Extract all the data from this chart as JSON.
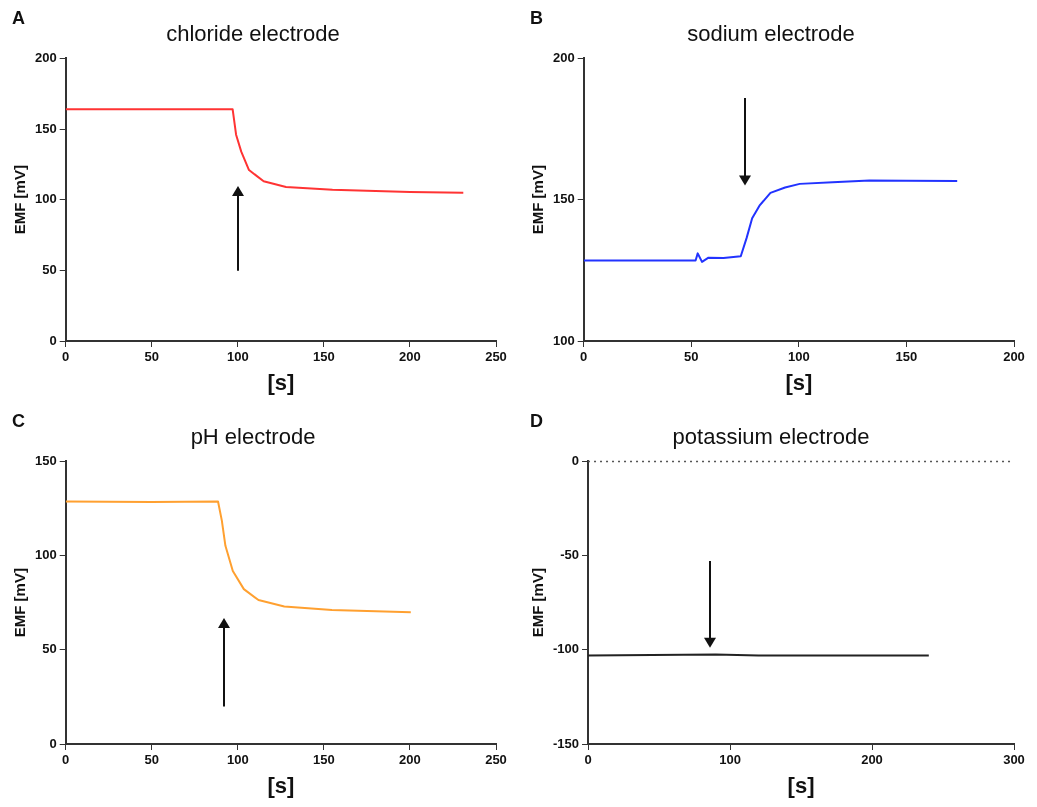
{
  "chart_data": [
    {
      "type": "line",
      "title": "chloride electrode",
      "xlabel": "[s]",
      "ylabel": "EMF [mV]",
      "annotations": [
        "A"
      ],
      "grid": false,
      "legend": false,
      "marker": "none",
      "line_style": "solid",
      "xlim": [
        0,
        250
      ],
      "xticks": [
        0,
        50,
        100,
        150,
        200,
        250
      ],
      "ylim": [
        0,
        200
      ],
      "yticks": [
        0,
        50,
        100,
        150,
        200
      ],
      "series": [
        {
          "color": "#ff3333",
          "x": [
            0,
            50,
            97,
            99,
            102,
            106.5,
            115,
            128,
            155,
            200,
            231
          ],
          "values": [
            164,
            164,
            164,
            146,
            134,
            121,
            113,
            109,
            107,
            105.5,
            105
          ]
        }
      ]
    },
    {
      "type": "line",
      "title": "sodium electrode",
      "xlabel": "[s]",
      "ylabel": "EMF [mV]",
      "annotations": [
        "B"
      ],
      "grid": false,
      "legend": false,
      "marker": "none",
      "line_style": "solid",
      "xlim": [
        0,
        200
      ],
      "xticks": [
        0,
        50,
        100,
        150,
        200
      ],
      "ylim": [
        100,
        200
      ],
      "yticks": [
        100,
        150,
        200
      ],
      "series": [
        {
          "color": "#2233ff",
          "x": [
            0,
            52,
            53,
            55,
            58,
            65,
            73,
            75.7,
            78.3,
            81.7,
            86.8,
            93.6,
            100.4,
            115.7,
            132.8,
            150,
            173.6
          ],
          "values": [
            128.5,
            128.5,
            131,
            128,
            129.5,
            129.4,
            130,
            136.4,
            143.4,
            147.9,
            152.4,
            154.3,
            155.6,
            156.2,
            156.8,
            156.7,
            156.6
          ]
        }
      ]
    },
    {
      "type": "line",
      "title": "pH electrode",
      "xlabel": "[s]",
      "ylabel": "EMF [mV]",
      "annotations": [
        "C"
      ],
      "grid": false,
      "legend": false,
      "marker": "none",
      "line_style": "solid",
      "xlim": [
        0,
        250
      ],
      "xticks": [
        0,
        50,
        100,
        150,
        200,
        250
      ],
      "ylim": [
        0,
        150
      ],
      "yticks": [
        0,
        50,
        100,
        150
      ],
      "series": [
        {
          "color": "#ffa030",
          "x": [
            0,
            50,
            88.5,
            90.7,
            92.8,
            97.1,
            103.5,
            112,
            127,
            154.7,
            200.5
          ],
          "values": [
            128.7,
            128.5,
            128.7,
            118.7,
            105.2,
            91.8,
            82.2,
            76.4,
            73,
            71.1,
            69.9
          ]
        }
      ]
    },
    {
      "type": "line",
      "title": "potassium electrode",
      "xlabel": "[s]",
      "ylabel": "EMF [mV]",
      "annotations": [
        "D"
      ],
      "grid": false,
      "legend": false,
      "marker": "none",
      "line_style": "solid",
      "xlim": [
        0,
        300
      ],
      "xticks": [
        0,
        100,
        200,
        300
      ],
      "ylim": [
        -150,
        0
      ],
      "yticks": [
        -150,
        -100,
        -50,
        0
      ],
      "ref_lines": [
        {
          "axis": "y",
          "value": 0,
          "line_style": "dotted",
          "color": "#555555"
        }
      ],
      "series": [
        {
          "color": "#222222",
          "x": [
            0,
            90,
            120,
            240
          ],
          "values": [
            -103,
            -102.5,
            -103,
            -103
          ]
        }
      ]
    }
  ]
}
